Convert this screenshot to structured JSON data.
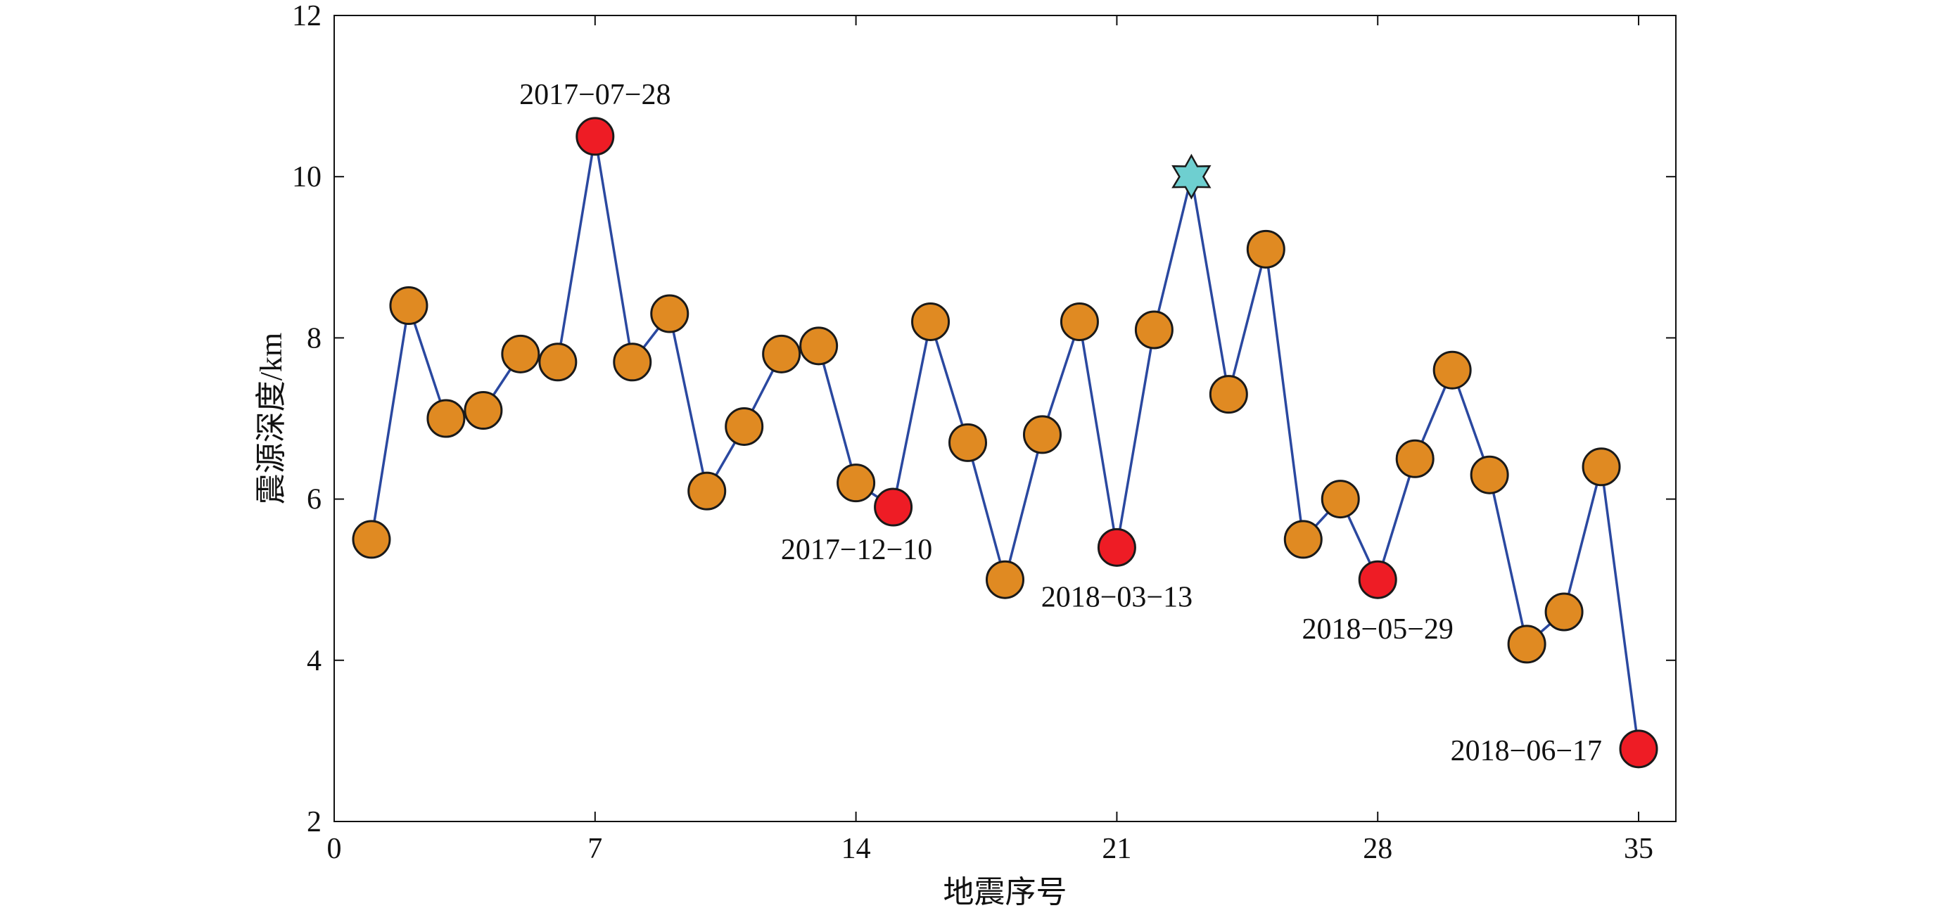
{
  "chart_data": {
    "type": "line",
    "title": "",
    "xlabel": "地震序号",
    "ylabel": "震源深度/km",
    "xlim": [
      0,
      36
    ],
    "ylim": [
      2,
      12
    ],
    "xticks": [
      0,
      7,
      14,
      21,
      28,
      35
    ],
    "yticks": [
      2,
      4,
      6,
      8,
      10,
      12
    ],
    "grid": false,
    "line_color": "#2a48a0",
    "colors": {
      "normal": "#e08a22",
      "highlight": "#ee1c25",
      "star": "#6ecfd0",
      "edge": "#1a1a1a"
    },
    "series": [
      {
        "x": [
          1,
          2,
          3,
          4,
          5,
          6,
          7,
          8,
          9,
          10,
          11,
          12,
          13,
          14,
          15,
          16,
          17,
          18,
          19,
          20,
          21,
          22,
          23,
          24,
          25,
          26,
          27,
          28,
          29,
          30,
          31,
          32,
          33,
          34,
          35
        ],
        "y": [
          5.5,
          8.4,
          7.0,
          7.1,
          7.8,
          7.7,
          10.5,
          7.7,
          8.3,
          6.1,
          6.9,
          7.8,
          7.9,
          6.2,
          5.9,
          8.2,
          6.7,
          5.0,
          6.8,
          8.2,
          5.4,
          8.1,
          10.0,
          7.3,
          9.1,
          5.5,
          6.0,
          5.0,
          6.5,
          7.6,
          6.3,
          4.2,
          4.6,
          6.4,
          2.9
        ],
        "marker_type": [
          "normal",
          "normal",
          "normal",
          "normal",
          "normal",
          "normal",
          "highlight",
          "normal",
          "normal",
          "normal",
          "normal",
          "normal",
          "normal",
          "normal",
          "highlight",
          "normal",
          "normal",
          "normal",
          "normal",
          "normal",
          "highlight",
          "normal",
          "star",
          "normal",
          "normal",
          "normal",
          "normal",
          "highlight",
          "normal",
          "normal",
          "normal",
          "normal",
          "normal",
          "normal",
          "highlight"
        ]
      }
    ],
    "annotations": [
      {
        "text": "2017−07−28",
        "x": 7,
        "y": 10.5,
        "position": "above"
      },
      {
        "text": "2017−12−10",
        "x": 15,
        "y": 5.9,
        "position": "below-left"
      },
      {
        "text": "2018−03−13",
        "x": 21,
        "y": 5.4,
        "position": "below"
      },
      {
        "text": "2018−05−29",
        "x": 28,
        "y": 5.0,
        "position": "below"
      },
      {
        "text": "2018−06−17",
        "x": 35,
        "y": 2.9,
        "position": "left"
      }
    ]
  }
}
